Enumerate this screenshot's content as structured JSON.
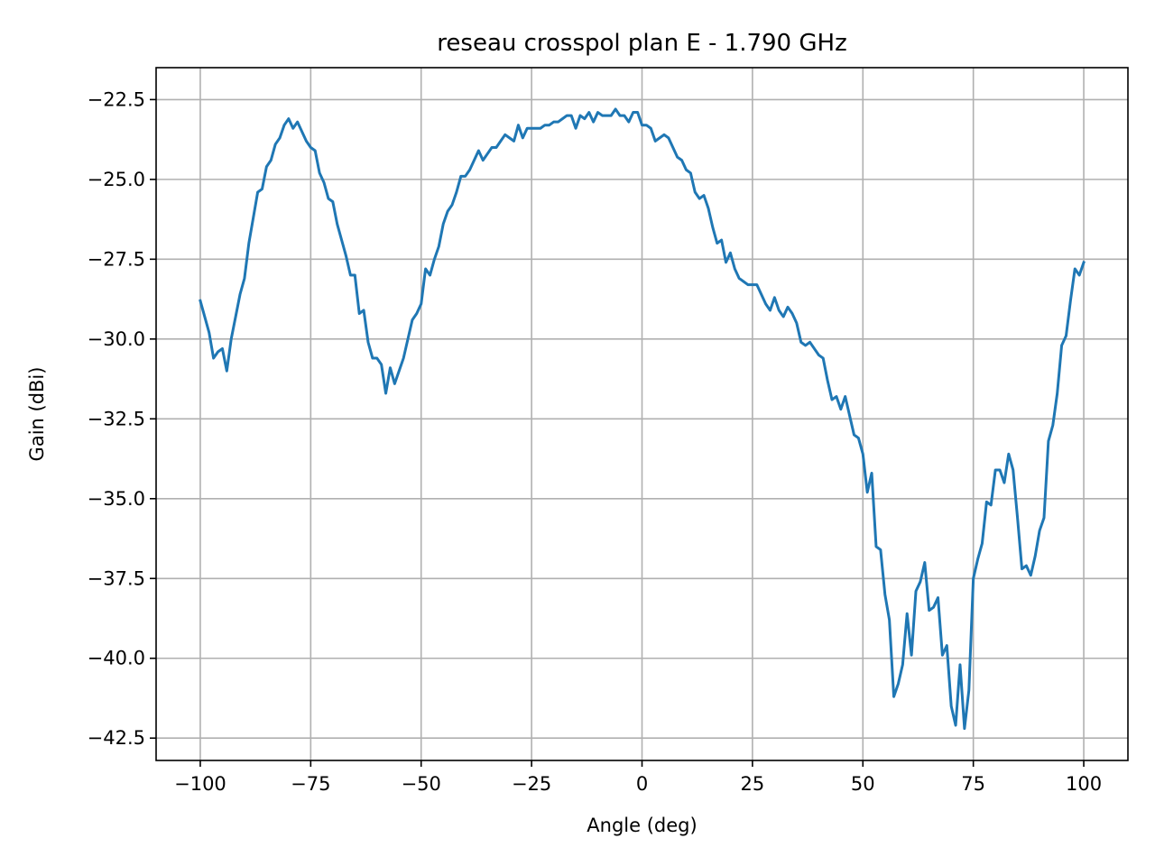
{
  "chart_data": {
    "type": "line",
    "title": "reseau crosspol plan E - 1.790 GHz",
    "xlabel": "Angle (deg)",
    "ylabel": "Gain (dBi)",
    "xlim": [
      -110,
      110
    ],
    "ylim": [
      -43.2,
      -21.5
    ],
    "grid": true,
    "xticks": [
      -100,
      -75,
      -50,
      -25,
      0,
      25,
      50,
      75,
      100
    ],
    "xtick_labels": [
      "−100",
      "−75",
      "−50",
      "−25",
      "0",
      "25",
      "50",
      "75",
      "100"
    ],
    "yticks": [
      -22.5,
      -25.0,
      -27.5,
      -30.0,
      -32.5,
      -35.0,
      -37.5,
      -40.0,
      -42.5
    ],
    "ytick_labels": [
      "−22.5",
      "−25.0",
      "−27.5",
      "−30.0",
      "−32.5",
      "−35.0",
      "−37.5",
      "−40.0",
      "−42.5"
    ],
    "series": [
      {
        "color": "#1f77b4",
        "x": [
          -100,
          -99,
          -98,
          -97,
          -96,
          -95,
          -94,
          -93,
          -92,
          -91,
          -90,
          -89,
          -88,
          -87,
          -86,
          -85,
          -84,
          -83,
          -82,
          -81,
          -80,
          -79,
          -78,
          -77,
          -76,
          -75,
          -74,
          -73,
          -72,
          -71,
          -70,
          -69,
          -68,
          -67,
          -66,
          -65,
          -64,
          -63,
          -62,
          -61,
          -60,
          -59,
          -58,
          -57,
          -56,
          -55,
          -54,
          -53,
          -52,
          -51,
          -50,
          -49,
          -48,
          -47,
          -46,
          -45,
          -44,
          -43,
          -42,
          -41,
          -40,
          -39,
          -38,
          -37,
          -36,
          -35,
          -34,
          -33,
          -32,
          -31,
          -30,
          -29,
          -28,
          -27,
          -26,
          -25,
          -24,
          -23,
          -22,
          -21,
          -20,
          -19,
          -18,
          -17,
          -16,
          -15,
          -14,
          -13,
          -12,
          -11,
          -10,
          -9,
          -8,
          -7,
          -6,
          -5,
          -4,
          -3,
          -2,
          -1,
          0,
          1,
          2,
          3,
          4,
          5,
          6,
          7,
          8,
          9,
          10,
          11,
          12,
          13,
          14,
          15,
          16,
          17,
          18,
          19,
          20,
          21,
          22,
          23,
          24,
          25,
          26,
          27,
          28,
          29,
          30,
          31,
          32,
          33,
          34,
          35,
          36,
          37,
          38,
          39,
          40,
          41,
          42,
          43,
          44,
          45,
          46,
          47,
          48,
          49,
          50,
          51,
          52,
          53,
          54,
          55,
          56,
          57,
          58,
          59,
          60,
          61,
          62,
          63,
          64,
          65,
          66,
          67,
          68,
          69,
          70,
          71,
          72,
          73,
          74,
          75,
          76,
          77,
          78,
          79,
          80,
          81,
          82,
          83,
          84,
          85,
          86,
          87,
          88,
          89,
          90,
          91,
          92,
          93,
          94,
          95,
          96,
          97,
          98,
          99,
          100
        ],
        "y": [
          -28.8,
          -29.3,
          -29.8,
          -30.6,
          -30.4,
          -30.3,
          -31.0,
          -30.0,
          -29.3,
          -28.6,
          -28.1,
          -27.0,
          -26.2,
          -25.4,
          -25.3,
          -24.6,
          -24.4,
          -23.9,
          -23.7,
          -23.3,
          -23.1,
          -23.4,
          -23.2,
          -23.5,
          -23.8,
          -24.0,
          -24.1,
          -24.8,
          -25.1,
          -25.6,
          -25.7,
          -26.4,
          -26.9,
          -27.4,
          -28.0,
          -28.0,
          -29.2,
          -29.1,
          -30.1,
          -30.6,
          -30.6,
          -30.8,
          -31.7,
          -30.9,
          -31.4,
          -31.0,
          -30.6,
          -30.0,
          -29.4,
          -29.2,
          -28.9,
          -27.8,
          -28.0,
          -27.5,
          -27.1,
          -26.4,
          -26.0,
          -25.8,
          -25.4,
          -24.9,
          -24.9,
          -24.7,
          -24.4,
          -24.1,
          -24.4,
          -24.2,
          -24.0,
          -24.0,
          -23.8,
          -23.6,
          -23.7,
          -23.8,
          -23.3,
          -23.7,
          -23.4,
          -23.4,
          -23.4,
          -23.4,
          -23.3,
          -23.3,
          -23.2,
          -23.2,
          -23.1,
          -23.0,
          -23.0,
          -23.4,
          -23.0,
          -23.1,
          -22.9,
          -23.2,
          -22.9,
          -23.0,
          -23.0,
          -23.0,
          -22.8,
          -23.0,
          -23.0,
          -23.2,
          -22.9,
          -22.9,
          -23.3,
          -23.3,
          -23.4,
          -23.8,
          -23.7,
          -23.6,
          -23.7,
          -24.0,
          -24.3,
          -24.4,
          -24.7,
          -24.8,
          -25.4,
          -25.6,
          -25.5,
          -25.9,
          -26.5,
          -27.0,
          -26.9,
          -27.6,
          -27.3,
          -27.8,
          -28.1,
          -28.2,
          -28.3,
          -28.3,
          -28.3,
          -28.6,
          -28.9,
          -29.1,
          -28.7,
          -29.1,
          -29.3,
          -29.0,
          -29.2,
          -29.5,
          -30.1,
          -30.2,
          -30.1,
          -30.3,
          -30.5,
          -30.6,
          -31.3,
          -31.9,
          -31.8,
          -32.2,
          -31.8,
          -32.4,
          -33.0,
          -33.1,
          -33.6,
          -34.8,
          -34.2,
          -36.5,
          -36.6,
          -38.0,
          -38.8,
          -41.2,
          -40.8,
          -40.2,
          -38.6,
          -39.9,
          -37.9,
          -37.6,
          -37.0,
          -38.5,
          -38.4,
          -38.1,
          -39.9,
          -39.6,
          -41.5,
          -42.1,
          -40.2,
          -42.2,
          -41.0,
          -37.5,
          -36.9,
          -36.4,
          -35.1,
          -35.2,
          -34.1,
          -34.1,
          -34.5,
          -33.6,
          -34.1,
          -35.6,
          -37.2,
          -37.1,
          -37.4,
          -36.8,
          -36.0,
          -35.6,
          -33.2,
          -32.7,
          -31.7,
          -30.2,
          -29.9,
          -28.8,
          -27.8,
          -28.0,
          -27.6
        ]
      }
    ]
  }
}
